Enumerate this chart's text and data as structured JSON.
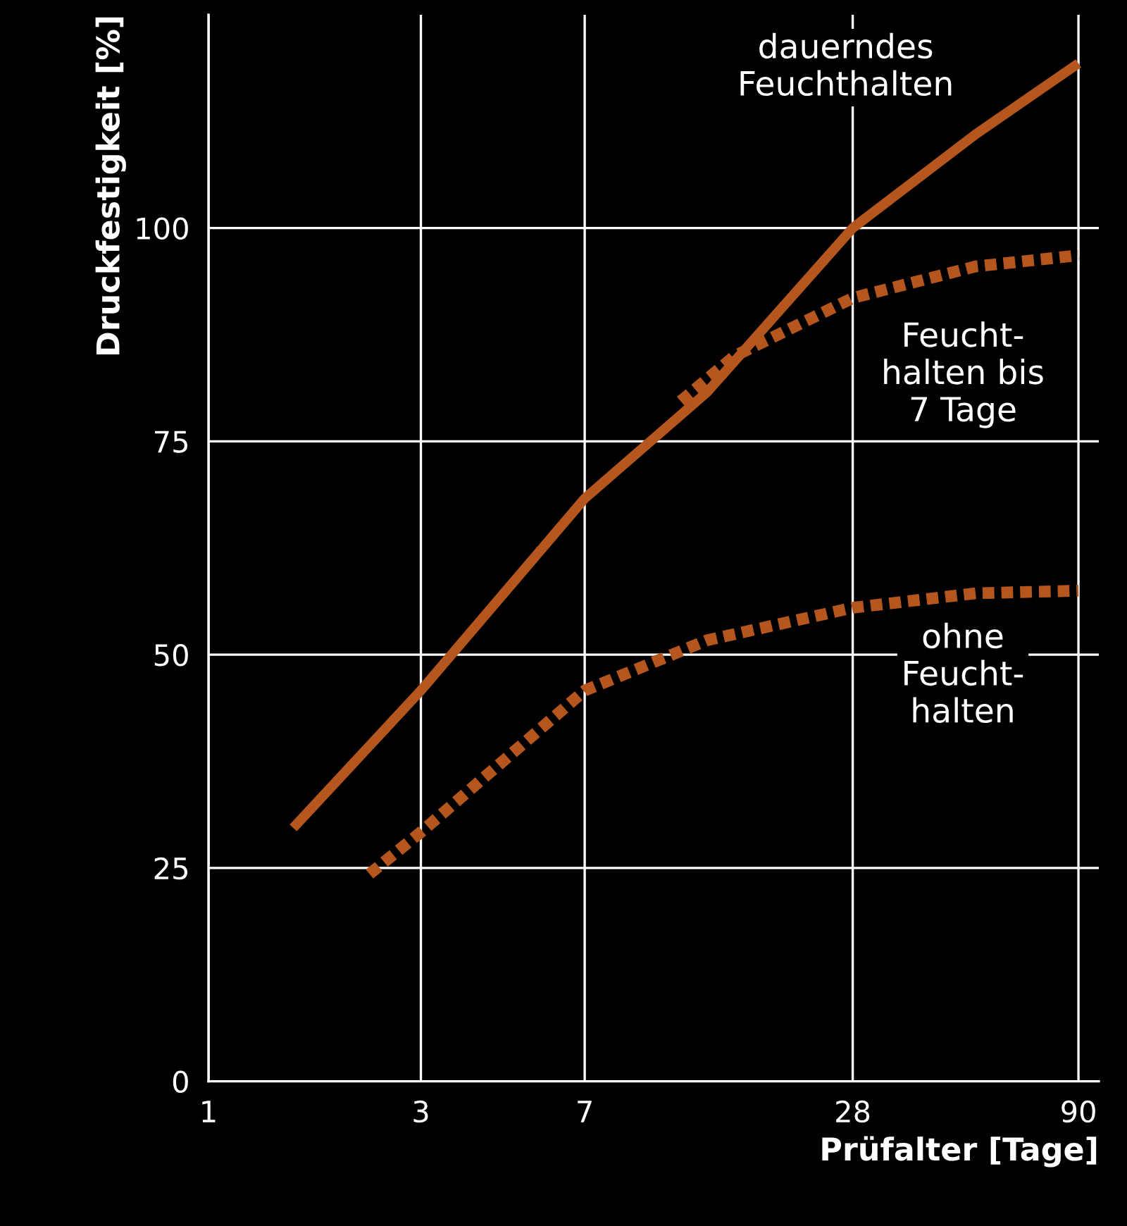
{
  "chart_data": {
    "type": "line",
    "xlabel": "Prüfalter [Tage]",
    "ylabel": "Druckfestigkeit [%]",
    "log": "x",
    "xlim": [
      1,
      100
    ],
    "xticks": [
      1,
      3,
      7,
      28,
      90
    ],
    "ylim": [
      0,
      125
    ],
    "yticks": [
      0,
      25,
      50,
      75,
      100
    ],
    "grid": true,
    "legend": false,
    "series": [
      {
        "name": "dauerndes\nFeuchthalten",
        "color": "#b5561f",
        "line_style": "solid",
        "x": [
          1.55,
          3,
          7,
          13.2,
          28,
          52.9,
          90
        ],
        "values": [
          29.7,
          45.8,
          68.3,
          80.8,
          100,
          111,
          119.3
        ]
      },
      {
        "name": "Feucht-\nhalten bis\n7 Tage",
        "color": "#b5561f",
        "line_style": "dotted",
        "x": [
          11.5,
          15.2,
          28,
          52.9,
          90
        ],
        "values": [
          79.7,
          85,
          91.8,
          95.5,
          96.8
        ]
      },
      {
        "name": "ohne\nFeucht-\nhalten",
        "color": "#b5561f",
        "line_style": "dotted",
        "x": [
          2.3,
          3,
          7,
          13.2,
          28,
          52.9,
          90
        ],
        "values": [
          24.3,
          29.2,
          45.8,
          51.7,
          55.5,
          57.2,
          57.5
        ]
      }
    ]
  }
}
